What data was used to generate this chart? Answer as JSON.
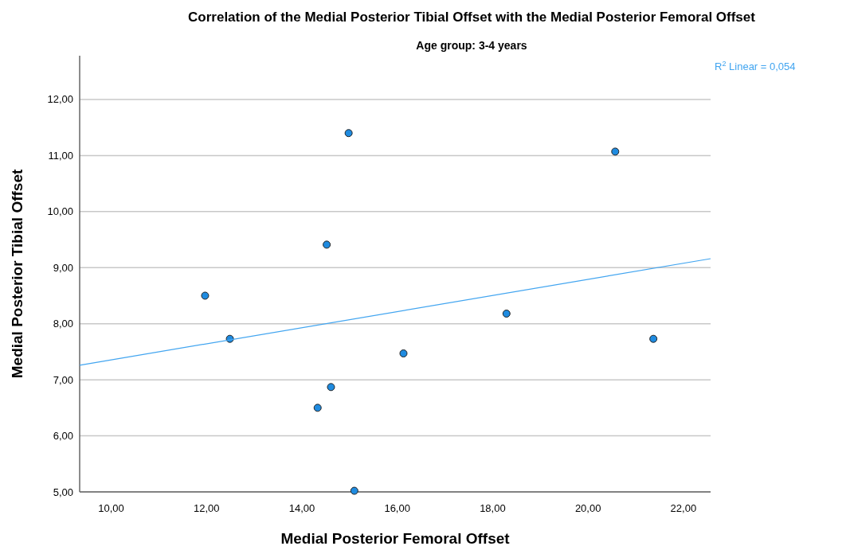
{
  "chart_data": {
    "type": "scatter",
    "title": "Correlation of the Medial Posterior Tibial Offset with the Medial Posterior Femoral Offset",
    "subtitle": "Age group: 3-4 years",
    "xlabel": "Medial Posterior Femoral Offset",
    "ylabel": "Medial Posterior Tibial Offset",
    "xlim": [
      9.34,
      22.57
    ],
    "ylim": [
      5,
      12.78
    ],
    "xticks": [
      {
        "value": 10,
        "label": "10,00"
      },
      {
        "value": 12,
        "label": "12,00"
      },
      {
        "value": 14,
        "label": "14,00"
      },
      {
        "value": 16,
        "label": "16,00"
      },
      {
        "value": 18,
        "label": "18,00"
      },
      {
        "value": 20,
        "label": "20,00"
      },
      {
        "value": 22,
        "label": "22,00"
      }
    ],
    "yticks": [
      {
        "value": 5,
        "label": "5,00"
      },
      {
        "value": 6,
        "label": "6,00"
      },
      {
        "value": 7,
        "label": "7,00"
      },
      {
        "value": 8,
        "label": "8,00"
      },
      {
        "value": 9,
        "label": "9,00"
      },
      {
        "value": 10,
        "label": "10,00"
      },
      {
        "value": 11,
        "label": "11,00"
      },
      {
        "value": 12,
        "label": "12,00"
      }
    ],
    "grid": "y",
    "series": [
      {
        "marker": "circle",
        "color": "#1f8be0",
        "x": [
          14.98,
          20.57,
          14.52,
          11.97,
          18.29,
          12.49,
          21.37,
          16.13,
          14.61,
          14.33,
          15.1
        ],
        "values": [
          11.4,
          11.07,
          9.41,
          8.5,
          8.18,
          7.73,
          7.73,
          7.47,
          6.87,
          6.5,
          5.02
        ]
      },
      {
        "type": "line",
        "marker": "none",
        "color": "#42a5f0",
        "x": [
          9.34,
          22.57
        ],
        "values": [
          7.26,
          9.16
        ]
      }
    ],
    "annotations": [
      "R$^{2}$ Linear = 0,054"
    ]
  }
}
